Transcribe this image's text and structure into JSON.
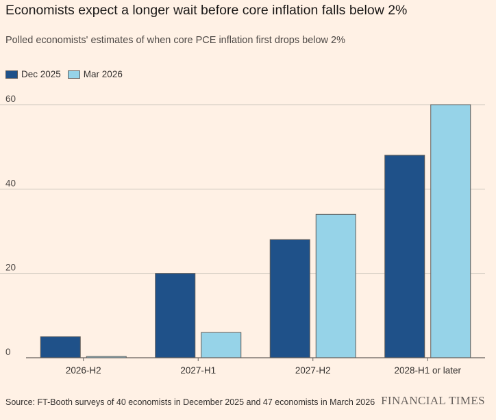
{
  "chart_data": {
    "type": "bar",
    "title": "Economists expect a longer wait before core inflation falls below 2%",
    "subtitle": "Polled economists' estimates of when core PCE inflation first drops below 2%",
    "categories": [
      "2026-H2",
      "2027-H1",
      "2027-H2",
      "2028-H1 or later"
    ],
    "series": [
      {
        "name": "Dec 2025",
        "color": "#1f5189",
        "values": [
          5,
          20,
          28,
          48
        ]
      },
      {
        "name": "Mar 2026",
        "color": "#96d3e8",
        "values": [
          0.3,
          6,
          34,
          60
        ]
      }
    ],
    "ylim": [
      0,
      60
    ],
    "yticks": [
      0,
      20,
      40,
      60
    ],
    "grid": true,
    "legend_position": "top-left",
    "xlabel": "",
    "ylabel": ""
  },
  "footer": {
    "source": "Source: FT-Booth surveys of 40 economists in December 2025 and 47 economists in March 2026",
    "brand": "FINANCIAL TIMES"
  }
}
